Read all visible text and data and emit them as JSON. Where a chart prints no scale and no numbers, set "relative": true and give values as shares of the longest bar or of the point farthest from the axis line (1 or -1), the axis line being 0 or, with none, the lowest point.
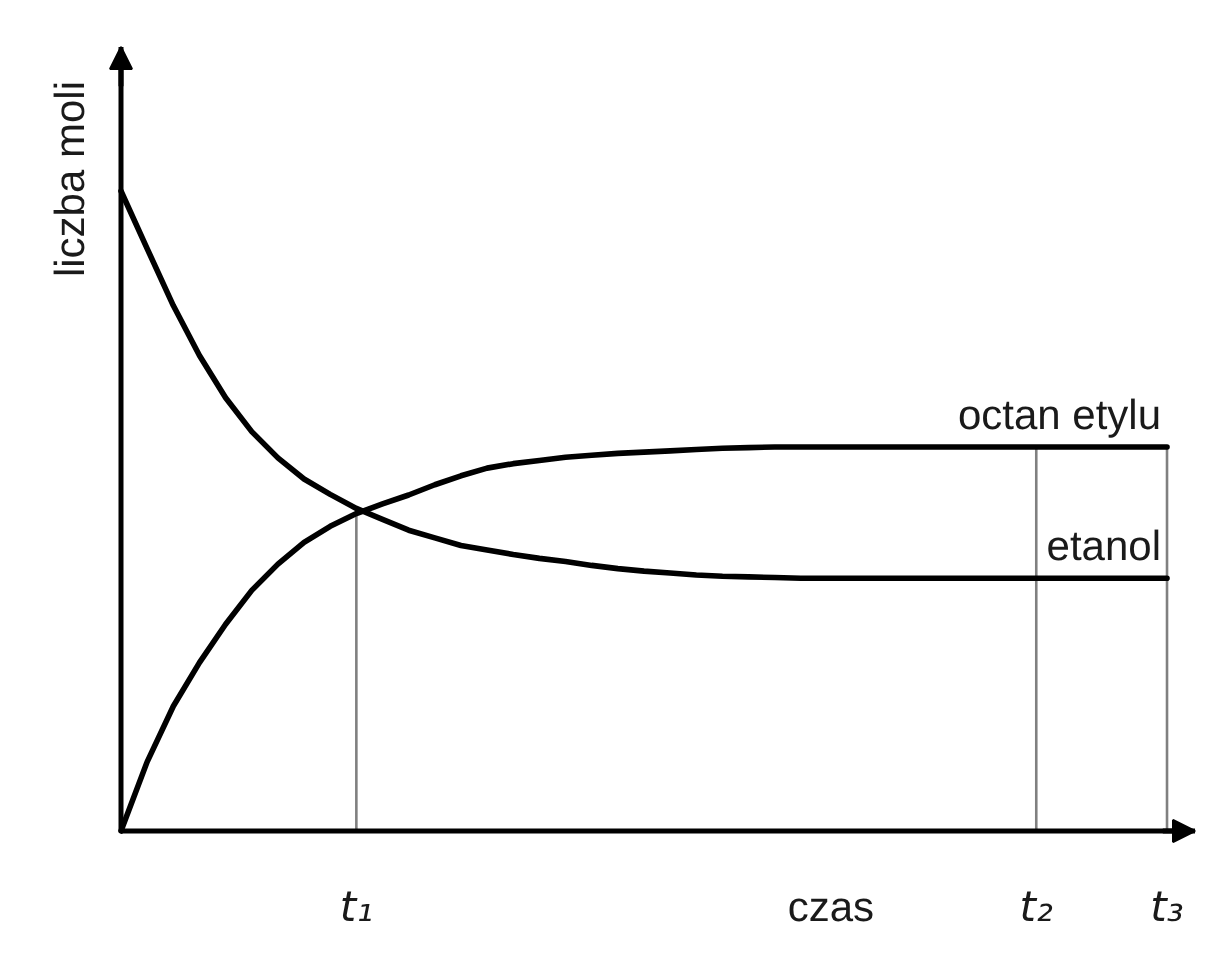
{
  "chart_data": {
    "type": "line",
    "relative": true,
    "xlabel": "czas",
    "ylabel": "liczba moli",
    "categories": [
      null,
      null,
      null,
      null,
      null,
      null,
      null,
      null,
      null,
      "t₁",
      null,
      null,
      null,
      null,
      null,
      null,
      null,
      null,
      null,
      null,
      null,
      null,
      null,
      null,
      null,
      null,
      null,
      null,
      null,
      null,
      null,
      null,
      null,
      null,
      null,
      "t₂",
      null,
      null,
      null,
      null,
      "t₃"
    ],
    "tick_labels": "x",
    "legend": false,
    "marker": "none",
    "line_style": "solid",
    "ref_lines": [
      {
        "axis": "x",
        "value": "t₁",
        "color": "#808080"
      },
      {
        "axis": "x",
        "value": "t₂",
        "color": "#808080"
      },
      {
        "axis": "x",
        "value": "t₃",
        "color": "#808080"
      }
    ],
    "series": [
      {
        "name": "octan etylu",
        "color": "#000000",
        "values": [
          0,
          0.108,
          0.195,
          0.263,
          0.323,
          0.376,
          0.417,
          0.451,
          0.476,
          0.496,
          0.511,
          0.525,
          0.541,
          0.555,
          0.567,
          0.574,
          0.579,
          0.584,
          0.587,
          0.59,
          0.592,
          0.594,
          0.596,
          0.598,
          0.599,
          0.6,
          0.6,
          0.6,
          0.6,
          0.6,
          0.6,
          0.6,
          0.6,
          0.6,
          0.6,
          0.6,
          0.6,
          0.6,
          0.6,
          0.6,
          0.6
        ]
      },
      {
        "name": "etanol",
        "color": "#000000",
        "values": [
          1.0,
          0.91,
          0.821,
          0.743,
          0.677,
          0.624,
          0.583,
          0.55,
          0.526,
          0.504,
          0.487,
          0.47,
          0.458,
          0.446,
          0.439,
          0.432,
          0.426,
          0.421,
          0.415,
          0.41,
          0.406,
          0.403,
          0.4,
          0.398,
          0.397,
          0.396,
          0.395,
          0.395,
          0.395,
          0.395,
          0.395,
          0.395,
          0.395,
          0.395,
          0.395,
          0.395,
          0.395,
          0.395,
          0.395,
          0.395,
          0.395
        ]
      }
    ]
  }
}
